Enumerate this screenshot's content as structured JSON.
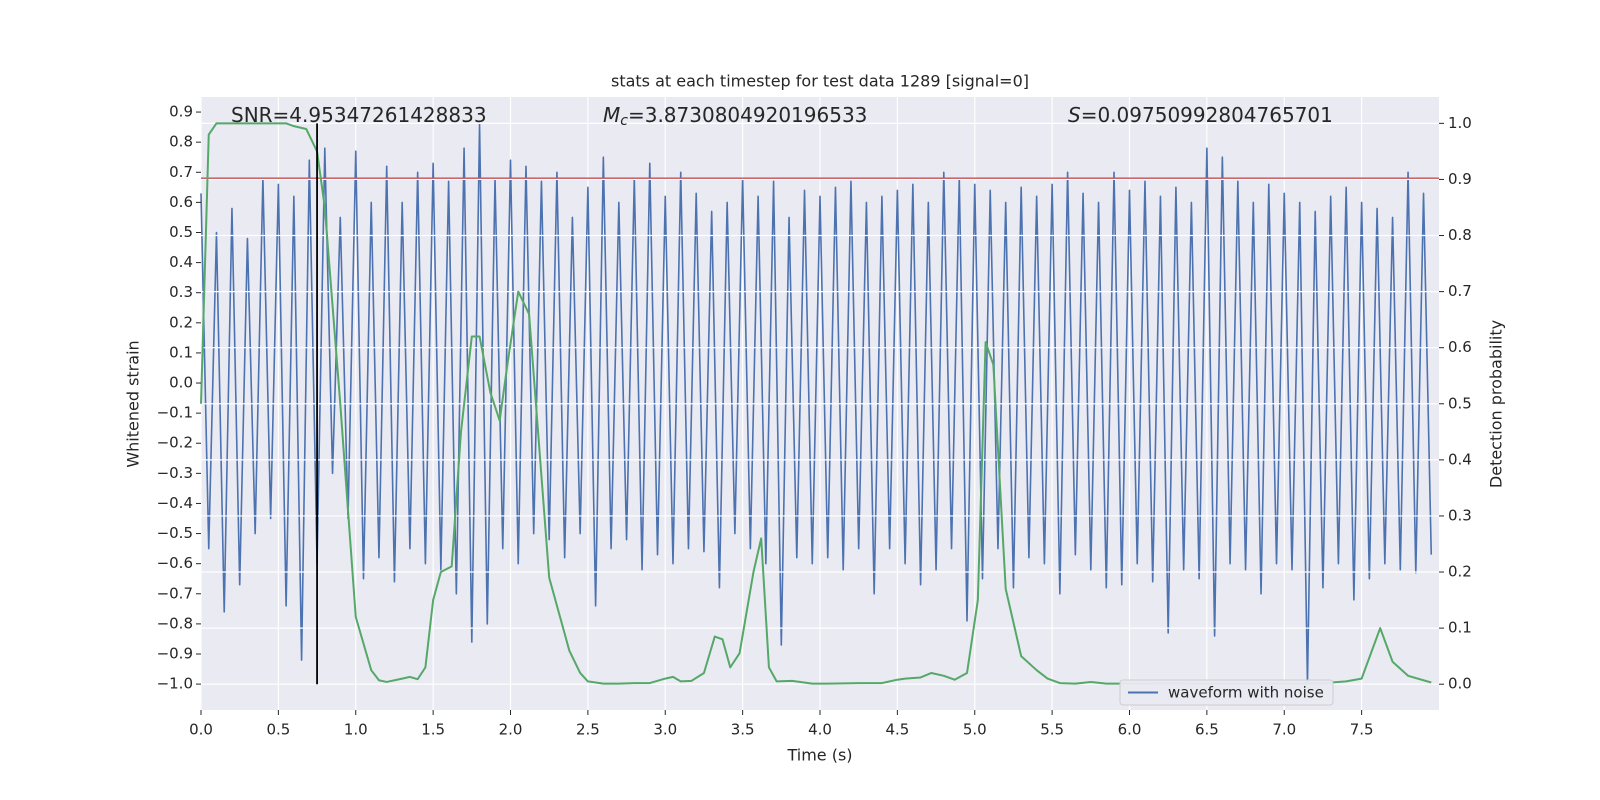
{
  "chart_data": {
    "type": "line",
    "title": "stats at each timestep for test data 1289 [signal=0]",
    "xlabel": "Time (s)",
    "ylabel": "Whitened strain",
    "y2label": "Detection probability",
    "annotations": [
      {
        "text": "SNR=4.95347261428833"
      },
      {
        "symbol": "M",
        "subscript": "c",
        "text": "=3.8730804920196533"
      },
      {
        "symbol": "S",
        "text": "=0.09750992804765701"
      }
    ],
    "xlim": [
      0,
      8.0
    ],
    "ylim": [
      -1.086,
      0.95
    ],
    "y2lim": [
      -0.046,
      1.047
    ],
    "xticks": [
      {
        "value": 0,
        "label": "0.0"
      },
      0.5,
      {
        "value": 1,
        "label": "1.0"
      },
      1.5,
      {
        "value": 2,
        "label": "2.0"
      },
      2.5,
      {
        "value": 3,
        "label": "3.0"
      },
      3.5,
      {
        "value": 4,
        "label": "4.0"
      },
      4.5,
      {
        "value": 5,
        "label": "5.0"
      },
      5.5,
      {
        "value": 6,
        "label": "6.0"
      },
      6.5,
      {
        "value": 7,
        "label": "7.0"
      },
      7.5
    ],
    "yticks": [
      {
        "value": -1,
        "label": "−1.0"
      },
      {
        "value": -0.9,
        "label": "−0.9"
      },
      {
        "value": -0.8,
        "label": "−0.8"
      },
      {
        "value": -0.7,
        "label": "−0.7"
      },
      {
        "value": -0.6,
        "label": "−0.6"
      },
      {
        "value": -0.5,
        "label": "−0.5"
      },
      {
        "value": -0.4,
        "label": "−0.4"
      },
      {
        "value": -0.3,
        "label": "−0.3"
      },
      {
        "value": -0.2,
        "label": "−0.2"
      },
      {
        "value": -0.1,
        "label": "−0.1"
      },
      {
        "value": 0,
        "label": "0.0"
      },
      0.1,
      0.2,
      0.3,
      0.4,
      0.5,
      0.6,
      0.7,
      0.8,
      0.9
    ],
    "y2ticks": [
      {
        "value": 0,
        "label": "0.0"
      },
      0.1,
      0.2,
      0.3,
      0.4,
      0.5,
      0.6,
      0.7,
      0.8,
      0.9,
      {
        "value": 1,
        "label": "1.0"
      }
    ],
    "grid": true,
    "legend": "lower right",
    "threshold": {
      "value": 0.68,
      "color": "#c44e52"
    },
    "marker_time": {
      "value": 0.75,
      "color": "#000000"
    },
    "series": [
      {
        "name": "waveform with noise",
        "color": "#4c72b0",
        "x": [
          0,
          0.05,
          0.1,
          0.15,
          0.2,
          0.25,
          0.3,
          0.35,
          0.4,
          0.45,
          0.5,
          0.55,
          0.6,
          0.65,
          0.7,
          0.75,
          0.8,
          0.85,
          0.9,
          0.95,
          1.0,
          1.05,
          1.1,
          1.15,
          1.2,
          1.25,
          1.3,
          1.35,
          1.4,
          1.45,
          1.5,
          1.55,
          1.6,
          1.65,
          1.7,
          1.75,
          1.8,
          1.85,
          1.9,
          1.95,
          2.0,
          2.05,
          2.1,
          2.15,
          2.2,
          2.25,
          2.3,
          2.35,
          2.4,
          2.45,
          2.5,
          2.55,
          2.6,
          2.65,
          2.7,
          2.75,
          2.8,
          2.85,
          2.9,
          2.95,
          3.0,
          3.05,
          3.1,
          3.15,
          3.2,
          3.25,
          3.3,
          3.35,
          3.4,
          3.45,
          3.5,
          3.55,
          3.6,
          3.65,
          3.7,
          3.75,
          3.8,
          3.85,
          3.9,
          3.95,
          4.0,
          4.05,
          4.1,
          4.15,
          4.2,
          4.25,
          4.3,
          4.35,
          4.4,
          4.45,
          4.5,
          4.55,
          4.6,
          4.65,
          4.7,
          4.75,
          4.8,
          4.85,
          4.9,
          4.95,
          5.0,
          5.05,
          5.1,
          5.15,
          5.2,
          5.25,
          5.3,
          5.35,
          5.4,
          5.45,
          5.5,
          5.55,
          5.6,
          5.65,
          5.7,
          5.75,
          5.8,
          5.85,
          5.9,
          5.95,
          6.0,
          6.05,
          6.1,
          6.15,
          6.2,
          6.25,
          6.3,
          6.35,
          6.4,
          6.45,
          6.5,
          6.55,
          6.6,
          6.65,
          6.7,
          6.75,
          6.8,
          6.85,
          6.9,
          6.95,
          7.0,
          7.05,
          7.1,
          7.15,
          7.2,
          7.25,
          7.3,
          7.35,
          7.4,
          7.45,
          7.5,
          7.55,
          7.6,
          7.65,
          7.7,
          7.75,
          7.8,
          7.85,
          7.9,
          7.95
        ],
        "values": [
          0.63,
          -0.55,
          0.5,
          -0.76,
          0.58,
          -0.67,
          0.48,
          -0.5,
          0.68,
          -0.45,
          0.66,
          -0.74,
          0.62,
          -0.92,
          0.74,
          -0.6,
          0.78,
          -0.3,
          0.55,
          -0.45,
          0.77,
          -0.65,
          0.6,
          -0.58,
          0.72,
          -0.66,
          0.6,
          -0.55,
          0.7,
          -0.6,
          0.73,
          -0.62,
          0.67,
          -0.7,
          0.78,
          -0.86,
          0.86,
          -0.8,
          0.68,
          -0.55,
          0.74,
          -0.6,
          0.72,
          -0.5,
          0.67,
          -0.52,
          0.7,
          -0.58,
          0.55,
          -0.5,
          0.65,
          -0.74,
          0.75,
          -0.55,
          0.6,
          -0.52,
          0.68,
          -0.62,
          0.73,
          -0.57,
          0.62,
          -0.6,
          0.7,
          -0.55,
          0.63,
          -0.56,
          0.57,
          -0.68,
          0.6,
          -0.5,
          0.68,
          -0.55,
          0.62,
          -0.6,
          0.67,
          -0.87,
          0.55,
          -0.58,
          0.64,
          -0.6,
          0.62,
          -0.58,
          0.65,
          -0.62,
          0.67,
          -0.55,
          0.6,
          -0.7,
          0.62,
          -0.55,
          0.64,
          -0.6,
          0.66,
          -0.67,
          0.6,
          -0.62,
          0.7,
          -0.55,
          0.68,
          -0.79,
          0.66,
          -0.65,
          0.64,
          -0.55,
          0.6,
          -0.68,
          0.65,
          -0.58,
          0.62,
          -0.6,
          0.66,
          -0.7,
          0.7,
          -0.57,
          0.63,
          -0.62,
          0.6,
          -0.68,
          0.7,
          -0.67,
          0.64,
          -0.6,
          0.67,
          -0.66,
          0.62,
          -0.83,
          0.65,
          -0.62,
          0.6,
          -0.65,
          0.78,
          -0.84,
          0.75,
          -0.6,
          0.67,
          -0.62,
          0.6,
          -0.7,
          0.66,
          -0.6,
          0.63,
          -0.62,
          0.6,
          -1.0,
          0.57,
          -0.68,
          0.62,
          -0.6,
          0.65,
          -0.72,
          0.6,
          -0.65,
          0.58,
          -0.6,
          0.55,
          -0.62,
          0.7,
          -0.63,
          0.63,
          -0.57
        ]
      },
      {
        "color": "#55a868",
        "axis": "y2",
        "x": [
          0,
          0.05,
          0.1,
          0.2,
          0.3,
          0.4,
          0.5,
          0.55,
          0.6,
          0.68,
          0.75,
          0.8,
          0.9,
          1.0,
          1.1,
          1.15,
          1.2,
          1.3,
          1.35,
          1.4,
          1.45,
          1.5,
          1.55,
          1.62,
          1.68,
          1.75,
          1.8,
          1.87,
          1.93,
          1.98,
          2.05,
          2.12,
          2.25,
          2.38,
          2.45,
          2.5,
          2.6,
          2.7,
          2.8,
          2.9,
          3.0,
          3.05,
          3.1,
          3.17,
          3.25,
          3.32,
          3.37,
          3.42,
          3.48,
          3.57,
          3.62,
          3.67,
          3.72,
          3.82,
          3.95,
          4.05,
          4.25,
          4.4,
          4.5,
          4.55,
          4.65,
          4.72,
          4.8,
          4.87,
          4.95,
          5.02,
          5.07,
          5.12,
          5.2,
          5.3,
          5.4,
          5.47,
          5.55,
          5.65,
          5.75,
          5.85,
          6.0,
          6.25,
          6.5,
          6.75,
          7.0,
          7.25,
          7.4,
          7.5,
          7.62,
          7.7,
          7.8,
          7.95
        ],
        "values": [
          0.5,
          0.98,
          1.0,
          1.0,
          1.0,
          1.0,
          1.0,
          1.0,
          0.995,
          0.99,
          0.95,
          0.85,
          0.5,
          0.12,
          0.025,
          0.007,
          0.004,
          0.01,
          0.013,
          0.009,
          0.03,
          0.15,
          0.2,
          0.21,
          0.45,
          0.62,
          0.62,
          0.52,
          0.47,
          0.57,
          0.7,
          0.66,
          0.19,
          0.06,
          0.02,
          0.005,
          0.001,
          0.001,
          0.002,
          0.002,
          0.01,
          0.013,
          0.005,
          0.006,
          0.02,
          0.085,
          0.08,
          0.03,
          0.055,
          0.2,
          0.26,
          0.03,
          0.005,
          0.006,
          0.001,
          0.001,
          0.002,
          0.002,
          0.008,
          0.01,
          0.012,
          0.02,
          0.015,
          0.008,
          0.02,
          0.15,
          0.61,
          0.57,
          0.17,
          0.05,
          0.025,
          0.01,
          0.002,
          0.001,
          0.004,
          0.001,
          0.001,
          0.002,
          0.001,
          0.001,
          0.001,
          0.002,
          0.005,
          0.01,
          0.1,
          0.04,
          0.015,
          0.003
        ]
      }
    ]
  }
}
